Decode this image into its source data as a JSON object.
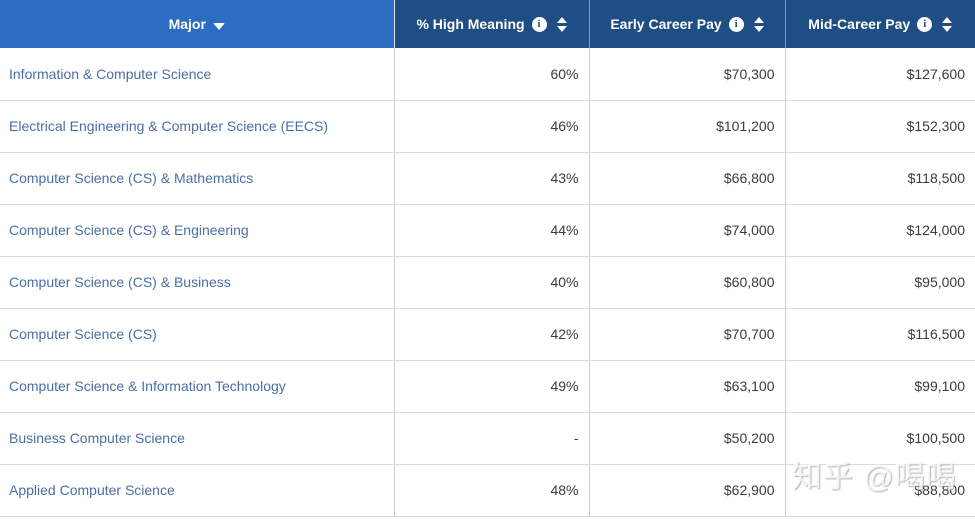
{
  "table": {
    "columns": [
      {
        "key": "major",
        "label": "Major",
        "sorted": "desc",
        "has_info": false
      },
      {
        "key": "high_meaning",
        "label": "% High Meaning",
        "sorted": "none",
        "has_info": true
      },
      {
        "key": "early_career_pay",
        "label": "Early Career Pay",
        "sorted": "none",
        "has_info": true
      },
      {
        "key": "mid_career_pay",
        "label": "Mid-Career Pay",
        "sorted": "none",
        "has_info": true
      }
    ],
    "rows": [
      {
        "major": "Information & Computer Science",
        "high_meaning": "60%",
        "early_career_pay": "$70,300",
        "mid_career_pay": "$127,600"
      },
      {
        "major": "Electrical Engineering & Computer Science (EECS)",
        "high_meaning": "46%",
        "early_career_pay": "$101,200",
        "mid_career_pay": "$152,300"
      },
      {
        "major": "Computer Science (CS) & Mathematics",
        "high_meaning": "43%",
        "early_career_pay": "$66,800",
        "mid_career_pay": "$118,500"
      },
      {
        "major": "Computer Science (CS) & Engineering",
        "high_meaning": "44%",
        "early_career_pay": "$74,000",
        "mid_career_pay": "$124,000"
      },
      {
        "major": "Computer Science (CS) & Business",
        "high_meaning": "40%",
        "early_career_pay": "$60,800",
        "mid_career_pay": "$95,000"
      },
      {
        "major": "Computer Science (CS)",
        "high_meaning": "42%",
        "early_career_pay": "$70,700",
        "mid_career_pay": "$116,500"
      },
      {
        "major": "Computer Science & Information Technology",
        "high_meaning": "49%",
        "early_career_pay": "$63,100",
        "mid_career_pay": "$99,100"
      },
      {
        "major": "Business Computer Science",
        "high_meaning": "-",
        "early_career_pay": "$50,200",
        "mid_career_pay": "$100,500"
      },
      {
        "major": "Applied Computer Science",
        "high_meaning": "48%",
        "early_career_pay": "$62,900",
        "mid_career_pay": "$88,800"
      }
    ]
  },
  "icons": {
    "info_glyph": "i"
  },
  "watermark": "知乎 @喝喝",
  "colors": {
    "header_major_bg": "#2c6dc1",
    "header_stat_bg": "#1f4e85",
    "header_text": "#ffffff",
    "major_link": "#4a6fa5",
    "value_text": "#3b3b3b",
    "row_border": "#d9d9d9",
    "column_border": "#cccccc"
  }
}
